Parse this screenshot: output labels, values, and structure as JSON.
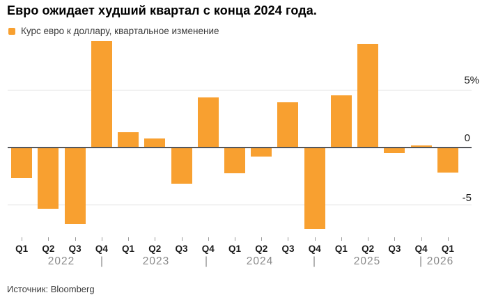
{
  "title": "Евро ожидает худший квартал с конца 2024 года.",
  "legend": {
    "label": "Курс евро к доллару, квартальное изменение",
    "swatch_color": "#F8A030"
  },
  "source": "Источник: Bloomberg",
  "chart_data": {
    "type": "bar",
    "title": "Евро ожидает худший квартал с конца 2024 года.",
    "series_name": "Курс евро к доллару, квартальное изменение",
    "unit": "%",
    "categories": [
      "Q1 2022",
      "Q2 2022",
      "Q3 2022",
      "Q4 2022",
      "Q1 2023",
      "Q2 2023",
      "Q3 2023",
      "Q4 2023",
      "Q1 2024",
      "Q2 2024",
      "Q3 2024",
      "Q4 2024",
      "Q1 2025",
      "Q2 2025",
      "Q3 2025",
      "Q4 2025",
      "Q1 2026"
    ],
    "x_labels": [
      "Q1",
      "Q2",
      "Q3",
      "Q4",
      "Q1",
      "Q2",
      "Q3",
      "Q4",
      "Q1",
      "Q2",
      "Q3",
      "Q4",
      "Q1",
      "Q2",
      "Q3",
      "Q4",
      "Q1"
    ],
    "year_labels": [
      "2022",
      "2023",
      "2024",
      "2025",
      "2026"
    ],
    "values": [
      -2.6,
      -5.3,
      -6.6,
      9.2,
      1.3,
      0.7,
      -3.1,
      4.3,
      -2.2,
      -0.7,
      3.9,
      -7.0,
      4.5,
      9.0,
      -0.4,
      0.1,
      -2.1
    ],
    "y_ticks": [
      {
        "label": "5%",
        "value": 5
      },
      {
        "label": "0",
        "value": 0
      },
      {
        "label": "-5",
        "value": -5
      }
    ],
    "ylim": [
      -7.5,
      9.5
    ],
    "bar_color": "#F8A030",
    "grid": "horizontal",
    "legend_position": "top-left"
  }
}
